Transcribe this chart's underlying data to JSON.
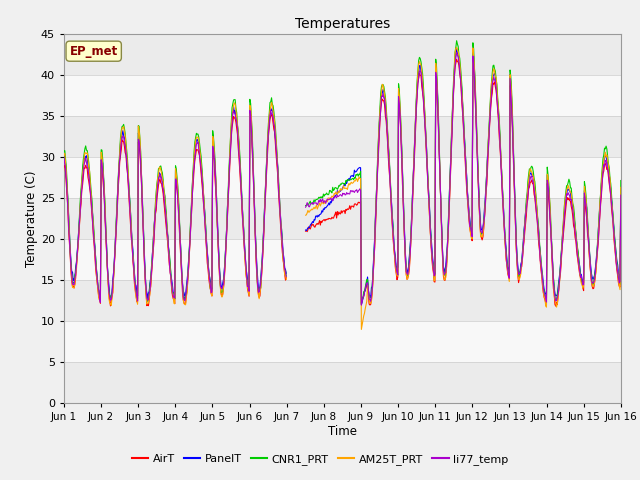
{
  "title": "Temperatures",
  "xlabel": "Time",
  "ylabel": "Temperature (C)",
  "ylim": [
    0,
    45
  ],
  "yticks": [
    0,
    5,
    10,
    15,
    20,
    25,
    30,
    35,
    40,
    45
  ],
  "xtick_labels": [
    "Jun 1",
    "Jun 2",
    "Jun 3",
    "Jun 4",
    "Jun 5",
    "Jun 6",
    "Jun 7",
    "Jun 8",
    "Jun 9",
    "Jun 10",
    "Jun 11",
    "Jun 12",
    "Jun 13",
    "Jun 14",
    "Jun 15",
    "Jun 16"
  ],
  "series_names": [
    "AirT",
    "PanelT",
    "CNR1_PRT",
    "AM25T_PRT",
    "li77_temp"
  ],
  "series_colors": [
    "#ff0000",
    "#0000ff",
    "#00cc00",
    "#ffa500",
    "#aa00cc"
  ],
  "annotation_text": "EP_met",
  "annotation_color": "#880000",
  "annotation_bg": "#ffffcc",
  "annotation_edge": "#888844",
  "title_fontsize": 10,
  "axis_fontsize": 8,
  "days": 15
}
